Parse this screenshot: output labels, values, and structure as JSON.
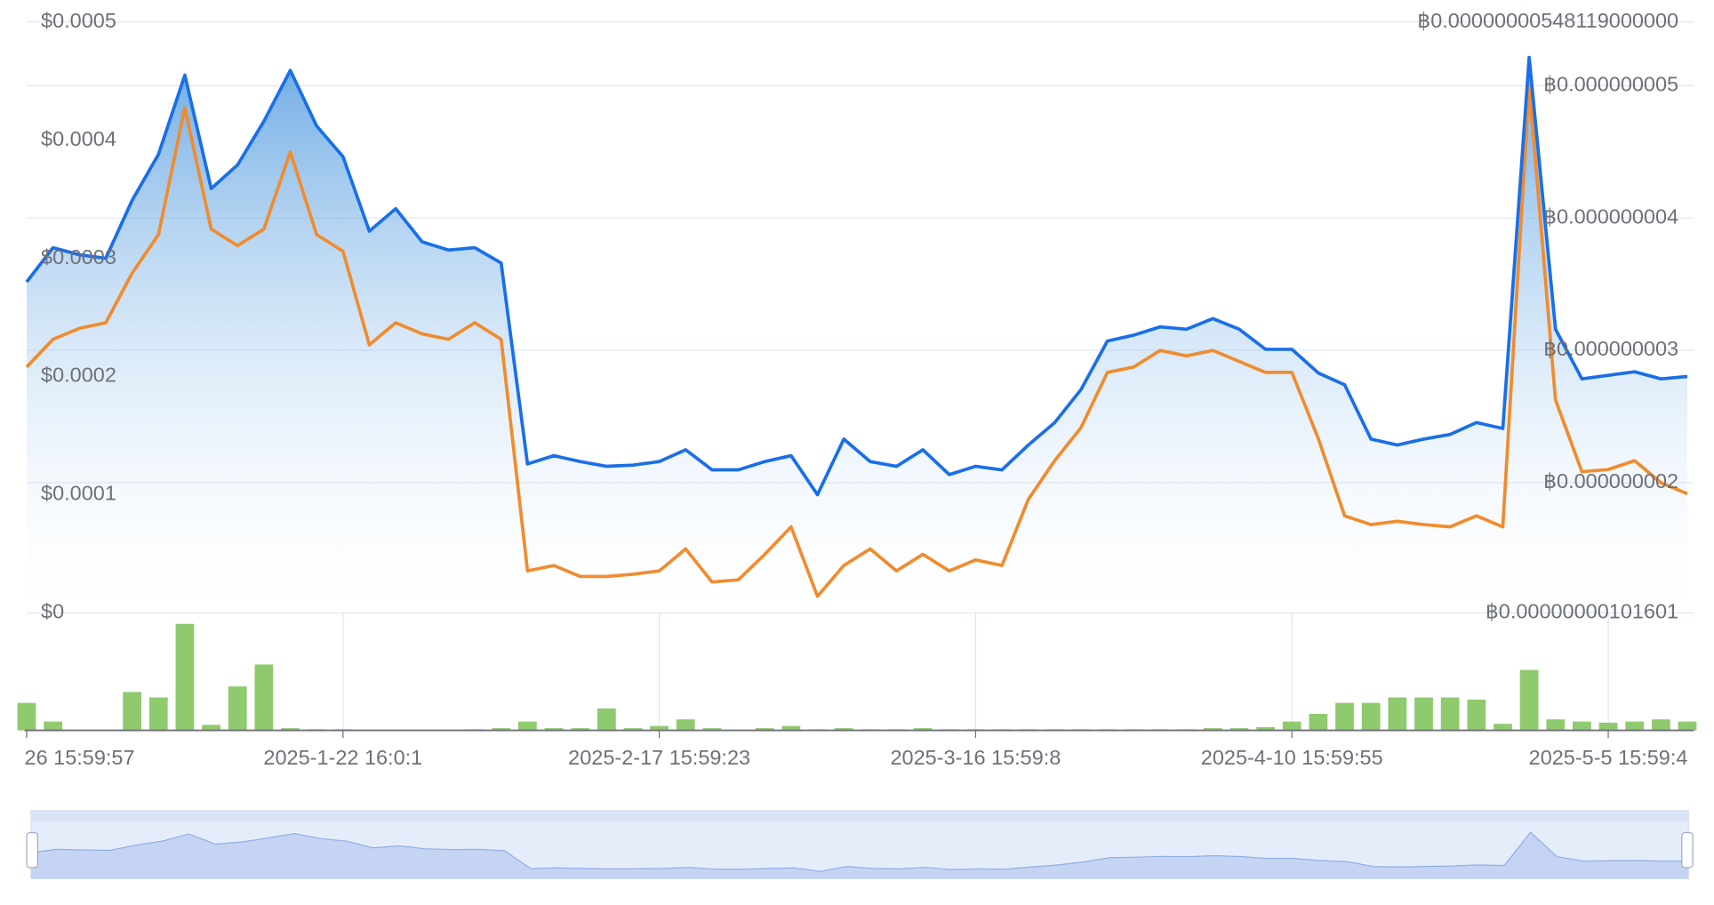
{
  "chart_data": [
    {
      "type": "line",
      "categories": [
        "26 15:59:57",
        null,
        null,
        null,
        null,
        null,
        null,
        null,
        null,
        null,
        null,
        null,
        "2025-1-22 16:0:1",
        null,
        null,
        null,
        null,
        null,
        null,
        null,
        null,
        null,
        null,
        null,
        "2025-2-17 15:59:23",
        null,
        null,
        null,
        null,
        null,
        null,
        null,
        null,
        null,
        null,
        null,
        "2025-3-16 15:59:8",
        null,
        null,
        null,
        null,
        null,
        null,
        null,
        null,
        null,
        null,
        null,
        "2025-4-10 15:59:55",
        null,
        null,
        null,
        null,
        null,
        null,
        null,
        null,
        null,
        null,
        null,
        "2025-5-5 15:59:4",
        null,
        null,
        null
      ],
      "series": [
        {
          "color": "#1a6fe8",
          "values": [
            0.00028,
            0.000309,
            0.000303,
            0.0003,
            0.000349,
            0.000388,
            0.000455,
            0.000359,
            0.000379,
            0.000416,
            0.000459,
            0.000412,
            0.000386,
            0.000323,
            0.000342,
            0.000314,
            0.000307,
            0.000309,
            0.000296,
            0.000126,
            0.000133,
            0.000128,
            0.000124,
            0.000125,
            0.000128,
            0.000138,
            0.000121,
            0.000121,
            0.000128,
            0.000133,
            0.0001,
            0.000147,
            0.000128,
            0.000124,
            0.000138,
            0.000117,
            0.000124,
            0.000121,
            0.000142,
            0.000161,
            0.000189,
            0.00023,
            0.000235,
            0.000242,
            0.00024,
            0.000249,
            0.00024,
            0.000223,
            0.000223,
            0.000203,
            0.000193,
            0.000147,
            0.000142,
            0.000147,
            0.000151,
            0.000161,
            0.000156,
            0.00047,
            0.00024,
            0.000198,
            0.000201,
            0.000204,
            0.000198,
            0.0002
          ]
        },
        {
          "color": "#f08c2e",
          "axis": "y2",
          "values": [
            2.874e-09,
            3.083e-09,
            3.166e-09,
            3.208e-09,
            3.583e-09,
            3.874e-09,
            4.833e-09,
            3.916e-09,
            3.791e-09,
            3.916e-09,
            4.499e-09,
            3.874e-09,
            3.749e-09,
            3.041e-09,
            3.208e-09,
            3.124e-09,
            3.083e-09,
            3.208e-09,
            3.083e-09,
            1.333e-09,
            1.374e-09,
            1.291e-09,
            1.291e-09,
            1.308e-09,
            1.333e-09,
            1.499e-09,
            1.249e-09,
            1.266e-09,
            1.458e-09,
            1.666e-09,
            1.141e-09,
            1.374e-09,
            1.499e-09,
            1.333e-09,
            1.458e-09,
            1.333e-09,
            1.416e-09,
            1.374e-09,
            1.874e-09,
            2.166e-09,
            2.416e-09,
            2.833e-09,
            2.874e-09,
            2.999e-09,
            2.958e-09,
            2.999e-09,
            2.916e-09,
            2.833e-09,
            2.833e-09,
            2.333e-09,
            1.749e-09,
            1.683e-09,
            1.708e-09,
            1.683e-09,
            1.666e-09,
            1.749e-09,
            1.666e-09,
            4.999e-09,
            2.624e-09,
            2.083e-09,
            2.099e-09,
            2.166e-09,
            1.999e-09,
            1.916e-09
          ]
        }
      ],
      "ylim": [
        0,
        0.0005
      ],
      "yticks": [
        {
          "value": 0,
          "label": "$0"
        },
        {
          "value": 0.0001,
          "label": "$0.0001"
        },
        {
          "value": 0.0002,
          "label": "$0.0002"
        },
        {
          "value": 0.0003,
          "label": "$0.0003"
        },
        {
          "value": 0.0004,
          "label": "$0.0004"
        },
        {
          "value": 0.0005,
          "label": "$0.0005"
        }
      ],
      "y2lim": [
        1.01601e-09,
        5.48119e-09
      ],
      "y2ticks": [
        {
          "value": 1.01601e-09,
          "label": "฿0.00000000101601"
        },
        {
          "value": 2e-09,
          "label": "฿0.000000002"
        },
        {
          "value": 3e-09,
          "label": "฿0.000000003"
        },
        {
          "value": 4e-09,
          "label": "฿0.000000004"
        },
        {
          "value": 5e-09,
          "label": "฿0.000000005"
        },
        {
          "value": 5.48119e-09,
          "label": "฿0.00000000548119000000"
        }
      ],
      "grid": true
    },
    {
      "type": "bar",
      "color": "#8fca6e",
      "values": [
        25,
        8,
        0,
        0,
        35,
        30,
        97,
        5,
        40,
        60,
        2,
        1,
        1,
        0,
        0,
        0,
        0,
        1,
        2,
        8,
        2,
        2,
        20,
        2,
        4,
        10,
        2,
        0,
        2,
        4,
        1,
        2,
        1,
        1,
        2,
        1,
        1,
        1,
        1,
        1,
        1,
        1,
        1,
        1,
        1,
        2,
        2,
        3,
        8,
        15,
        25,
        25,
        30,
        30,
        30,
        28,
        6,
        55,
        10,
        8,
        7,
        8,
        10,
        8
      ]
    }
  ]
}
